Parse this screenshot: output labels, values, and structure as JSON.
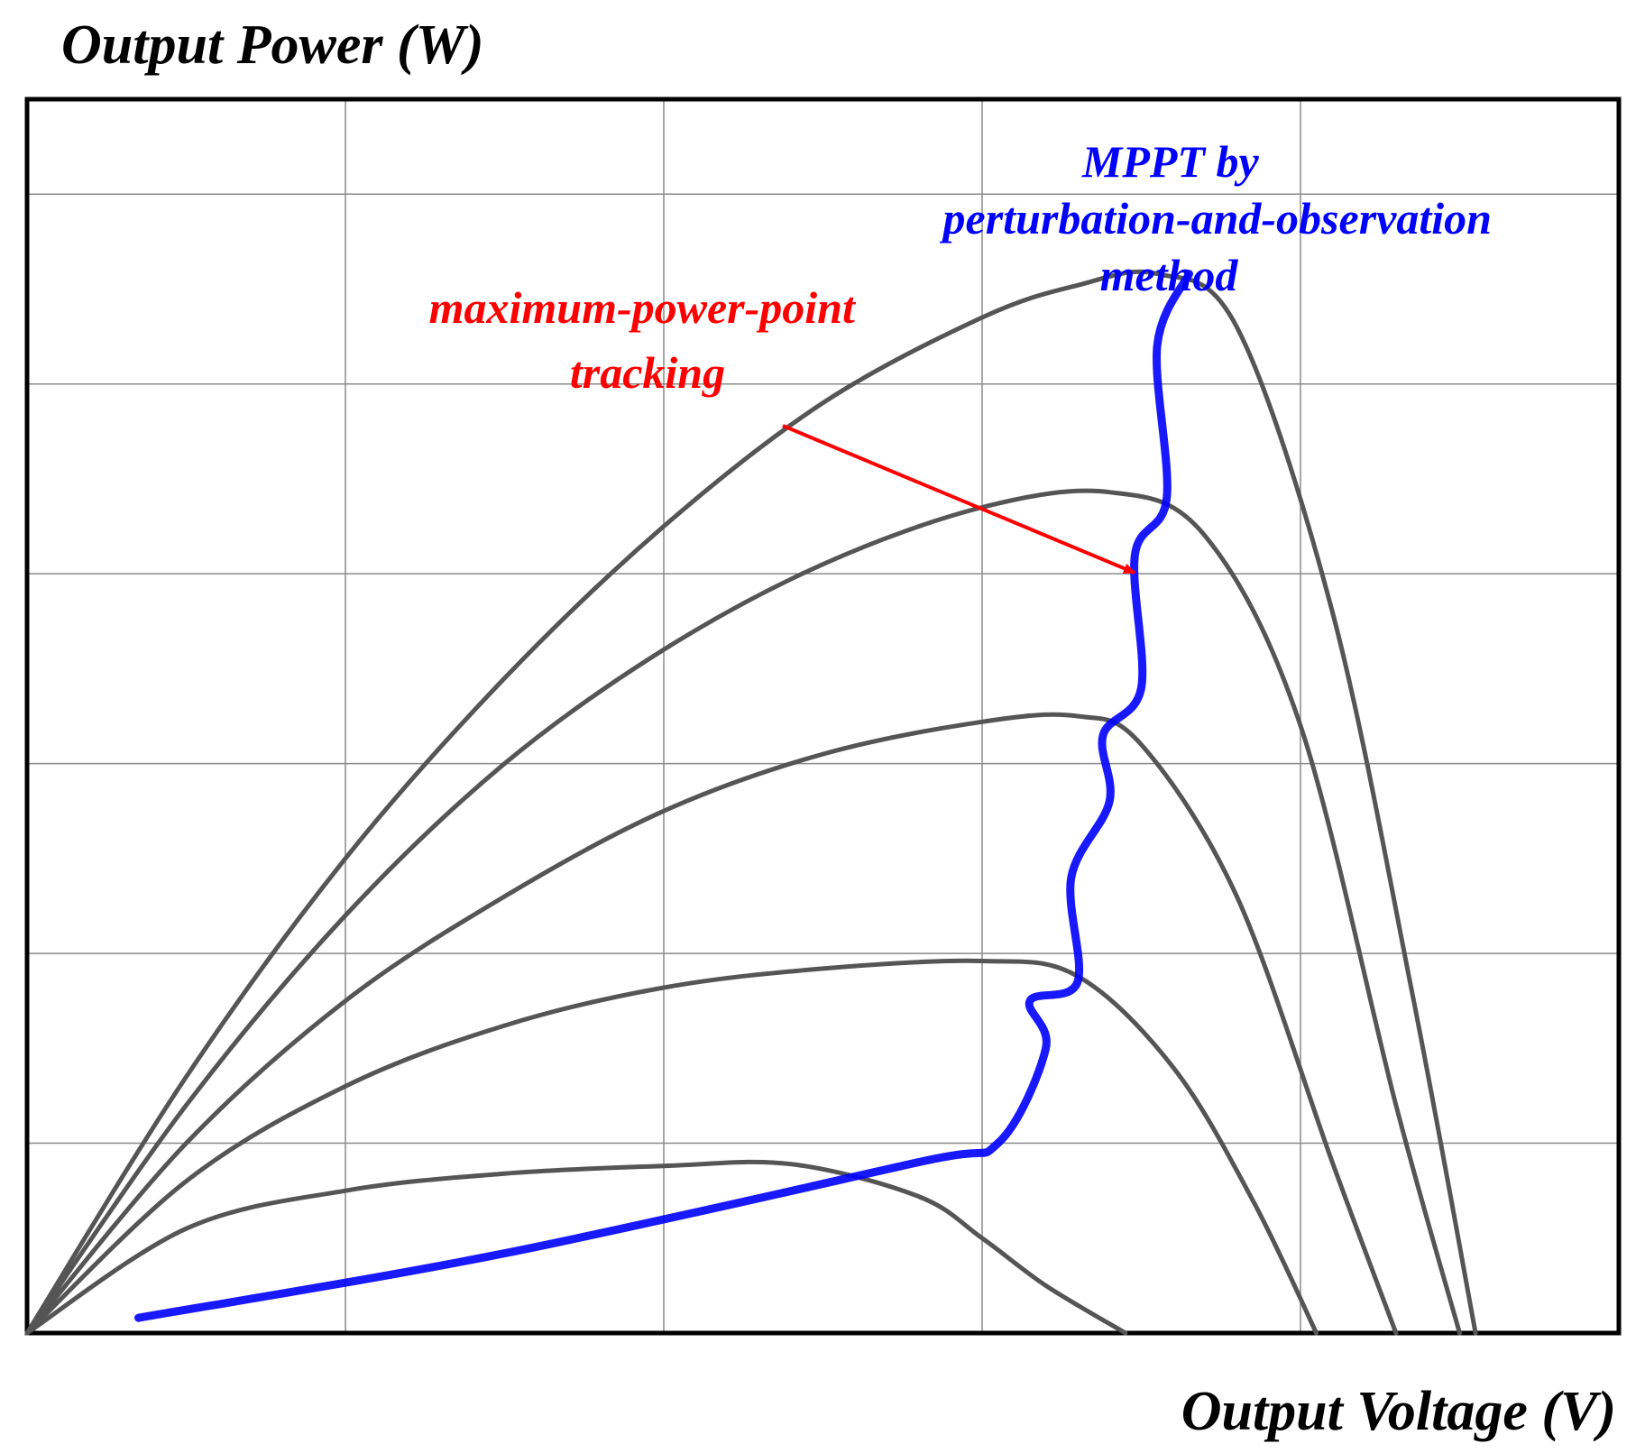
{
  "chart_data": {
    "type": "line",
    "title": "",
    "ylabel": "Output Power (W)",
    "xlabel": "Output Voltage (V)",
    "xlim": [
      0,
      5
    ],
    "ylim": [
      0,
      6.5
    ],
    "grid": true,
    "series": [
      {
        "name": "P-V curve 1",
        "color": "#555555",
        "x": [
          0,
          0.5,
          1.0,
          1.5,
          2.0,
          2.4,
          2.8,
          3.0,
          3.2,
          3.45
        ],
        "y": [
          0,
          0.55,
          0.75,
          0.84,
          0.88,
          0.89,
          0.72,
          0.5,
          0.25,
          0
        ]
      },
      {
        "name": "P-V curve 2",
        "color": "#555555",
        "x": [
          0,
          0.5,
          1.0,
          1.5,
          2.0,
          2.5,
          3.0,
          3.3,
          3.6,
          3.85,
          4.05
        ],
        "y": [
          0,
          0.8,
          1.3,
          1.62,
          1.82,
          1.92,
          1.96,
          1.88,
          1.4,
          0.7,
          0
        ]
      },
      {
        "name": "P-V curve 3",
        "color": "#555555",
        "x": [
          0,
          0.5,
          1.0,
          1.5,
          2.0,
          2.5,
          3.0,
          3.3,
          3.5,
          3.8,
          4.1,
          4.3
        ],
        "y": [
          0,
          1.0,
          1.75,
          2.3,
          2.75,
          3.05,
          3.22,
          3.25,
          3.1,
          2.3,
          0.9,
          0
        ]
      },
      {
        "name": "P-V curve 4",
        "color": "#555555",
        "x": [
          0,
          0.5,
          1.0,
          1.5,
          2.0,
          2.5,
          3.0,
          3.4,
          3.7,
          4.0,
          4.3,
          4.5
        ],
        "y": [
          0,
          1.2,
          2.2,
          3.0,
          3.6,
          4.05,
          4.35,
          4.43,
          4.2,
          3.2,
          1.2,
          0
        ]
      },
      {
        "name": "P-V curve 5",
        "color": "#555555",
        "x": [
          0,
          0.5,
          1.0,
          1.5,
          2.0,
          2.5,
          3.0,
          3.3,
          3.55,
          3.8,
          4.1,
          4.35,
          4.55
        ],
        "y": [
          0,
          1.35,
          2.5,
          3.45,
          4.25,
          4.9,
          5.35,
          5.52,
          5.58,
          5.3,
          3.8,
          1.8,
          0
        ]
      },
      {
        "name": "MPPT trajectory",
        "color": "#0000ff",
        "x": [
          0.35,
          1.5,
          2.8,
          3.05,
          3.2,
          3.15,
          3.3,
          3.28,
          3.4,
          3.38,
          3.5,
          3.48,
          3.58,
          3.55,
          3.65
        ],
        "y": [
          0.08,
          0.42,
          0.9,
          1.0,
          1.5,
          1.75,
          1.85,
          2.4,
          2.8,
          3.15,
          3.4,
          4.1,
          4.4,
          5.2,
          5.58
        ]
      }
    ],
    "annotations": [
      {
        "name": "mppt-label",
        "color": "#0000ff",
        "lines": [
          "MPPT  by",
          "perturbation-and-observation",
          "method"
        ]
      },
      {
        "name": "maximum-power-point-label",
        "color": "#ff0000",
        "lines": [
          "maximum-power-point",
          "tracking"
        ]
      }
    ]
  }
}
